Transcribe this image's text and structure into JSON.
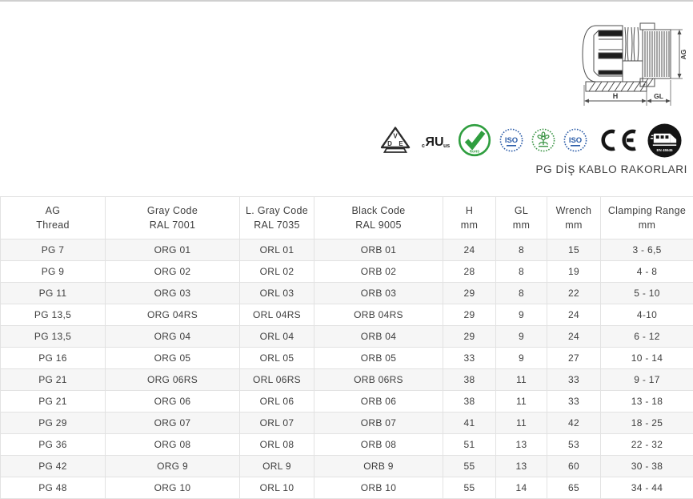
{
  "header": {
    "title": "PG DİŞ KABLO RAKORLARI"
  },
  "diagram": {
    "dim_h": "H",
    "dim_gl": "GL",
    "dim_ag": "AG"
  },
  "certifications": {
    "vde": {
      "d": "D",
      "v": "V",
      "e": "E"
    },
    "ul": {
      "c": "c",
      "mark": "ЯU",
      "us": "us"
    },
    "rohs": {
      "label": "RoHS"
    },
    "iso_a": {
      "label": "ISO"
    },
    "iso_b": {
      "label": "ISO"
    },
    "ce": {
      "label": "CE"
    },
    "en45545": {
      "label": "EN 45545"
    }
  },
  "colors": {
    "rohs_green": "#2f9e3f",
    "iso_blue": "#2b5ca8",
    "eco_green": "#3a9444",
    "badge_black": "#141414",
    "stripe_gray": "#f6f6f6",
    "border_gray": "#e2e2e2"
  },
  "table": {
    "columns": [
      {
        "line1": "AG",
        "line2": "Thread"
      },
      {
        "line1": "Gray Code",
        "line2": "RAL 7001"
      },
      {
        "line1": "L. Gray Code",
        "line2": "RAL 7035"
      },
      {
        "line1": "Black Code",
        "line2": "RAL 9005"
      },
      {
        "line1": "H",
        "line2": "mm"
      },
      {
        "line1": "GL",
        "line2": "mm"
      },
      {
        "line1": "Wrench",
        "line2": "mm"
      },
      {
        "line1": "Clamping Range",
        "line2": "mm"
      }
    ],
    "rows": [
      [
        "PG 7",
        "ORG 01",
        "ORL 01",
        "ORB 01",
        "24",
        "8",
        "15",
        "3 - 6,5"
      ],
      [
        "PG 9",
        "ORG 02",
        "ORL 02",
        "ORB 02",
        "28",
        "8",
        "19",
        "4 - 8"
      ],
      [
        "PG 11",
        "ORG 03",
        "ORL 03",
        "ORB 03",
        "29",
        "8",
        "22",
        "5 - 10"
      ],
      [
        "PG 13,5",
        "ORG 04RS",
        "ORL 04RS",
        "ORB 04RS",
        "29",
        "9",
        "24",
        "4-10"
      ],
      [
        "PG 13,5",
        "ORG 04",
        "ORL 04",
        "ORB 04",
        "29",
        "9",
        "24",
        "6 - 12"
      ],
      [
        "PG 16",
        "ORG 05",
        "ORL 05",
        "ORB 05",
        "33",
        "9",
        "27",
        "10 - 14"
      ],
      [
        "PG 21",
        "ORG 06RS",
        "ORL 06RS",
        "ORB 06RS",
        "38",
        "11",
        "33",
        "9 - 17"
      ],
      [
        "PG 21",
        "ORG 06",
        "ORL 06",
        "ORB 06",
        "38",
        "11",
        "33",
        "13 - 18"
      ],
      [
        "PG 29",
        "ORG 07",
        "ORL 07",
        "ORB 07",
        "41",
        "11",
        "42",
        "18 - 25"
      ],
      [
        "PG 36",
        "ORG 08",
        "ORL 08",
        "ORB 08",
        "51",
        "13",
        "53",
        "22 - 32"
      ],
      [
        "PG 42",
        "ORG 9",
        "ORL 9",
        "ORB 9",
        "55",
        "13",
        "60",
        "30 - 38"
      ],
      [
        "PG 48",
        "ORG 10",
        "ORL 10",
        "ORB 10",
        "55",
        "14",
        "65",
        "34 - 44"
      ]
    ]
  }
}
